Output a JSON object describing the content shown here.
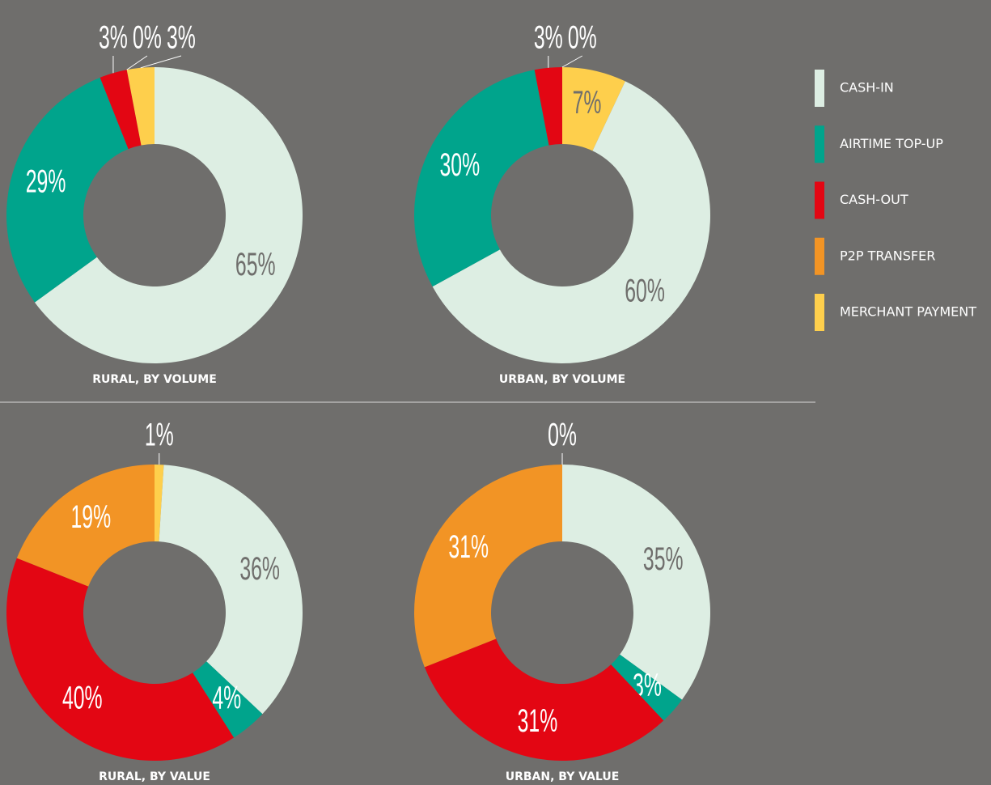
{
  "chart_data": [
    {
      "type": "pie",
      "title": "RURAL, BY VOLUME",
      "values": [
        65,
        29,
        3,
        0,
        3
      ],
      "value_labels": [
        "65%",
        "29%",
        "3%",
        "0%",
        "3%"
      ],
      "colors": [
        "#ddeee3",
        "#00a48c",
        "#e30613",
        "#f29425",
        "#fecf4c"
      ]
    },
    {
      "type": "pie",
      "title": "URBAN, BY VOLUME",
      "values": [
        7,
        60,
        30,
        3,
        0
      ],
      "value_labels": [
        "7%",
        "60%",
        "30%",
        "3%",
        "0%"
      ],
      "colors": [
        "#fecf4c",
        "#ddeee3",
        "#00a48c",
        "#e30613",
        "#f29425"
      ]
    },
    {
      "type": "pie",
      "title": "RURAL, BY VALUE",
      "values": [
        1,
        36,
        4,
        40,
        19
      ],
      "value_labels": [
        "1%",
        "36%",
        "4%",
        "40%",
        "19%"
      ],
      "colors": [
        "#fecf4c",
        "#ddeee3",
        "#00a48c",
        "#e30613",
        "#f29425"
      ]
    },
    {
      "type": "pie",
      "title": "URBAN, BY VALUE",
      "values": [
        0,
        35,
        3,
        31,
        31
      ],
      "value_labels": [
        "0%",
        "35%",
        "3%",
        "31%",
        "31%"
      ],
      "colors": [
        "#fecf4c",
        "#ddeee3",
        "#00a48c",
        "#e30613",
        "#f29425"
      ]
    }
  ],
  "legend": {
    "items": [
      {
        "name": "CASH-IN",
        "color": "#ddeee3"
      },
      {
        "name": "AIRTIME TOP-UP",
        "color": "#00a48c"
      },
      {
        "name": "CASH-OUT",
        "color": "#e30613"
      },
      {
        "name": "P2P TRANSFER",
        "color": "#f29425"
      },
      {
        "name": "MERCHANT PAYMENT",
        "color": "#fecf4c"
      }
    ]
  }
}
